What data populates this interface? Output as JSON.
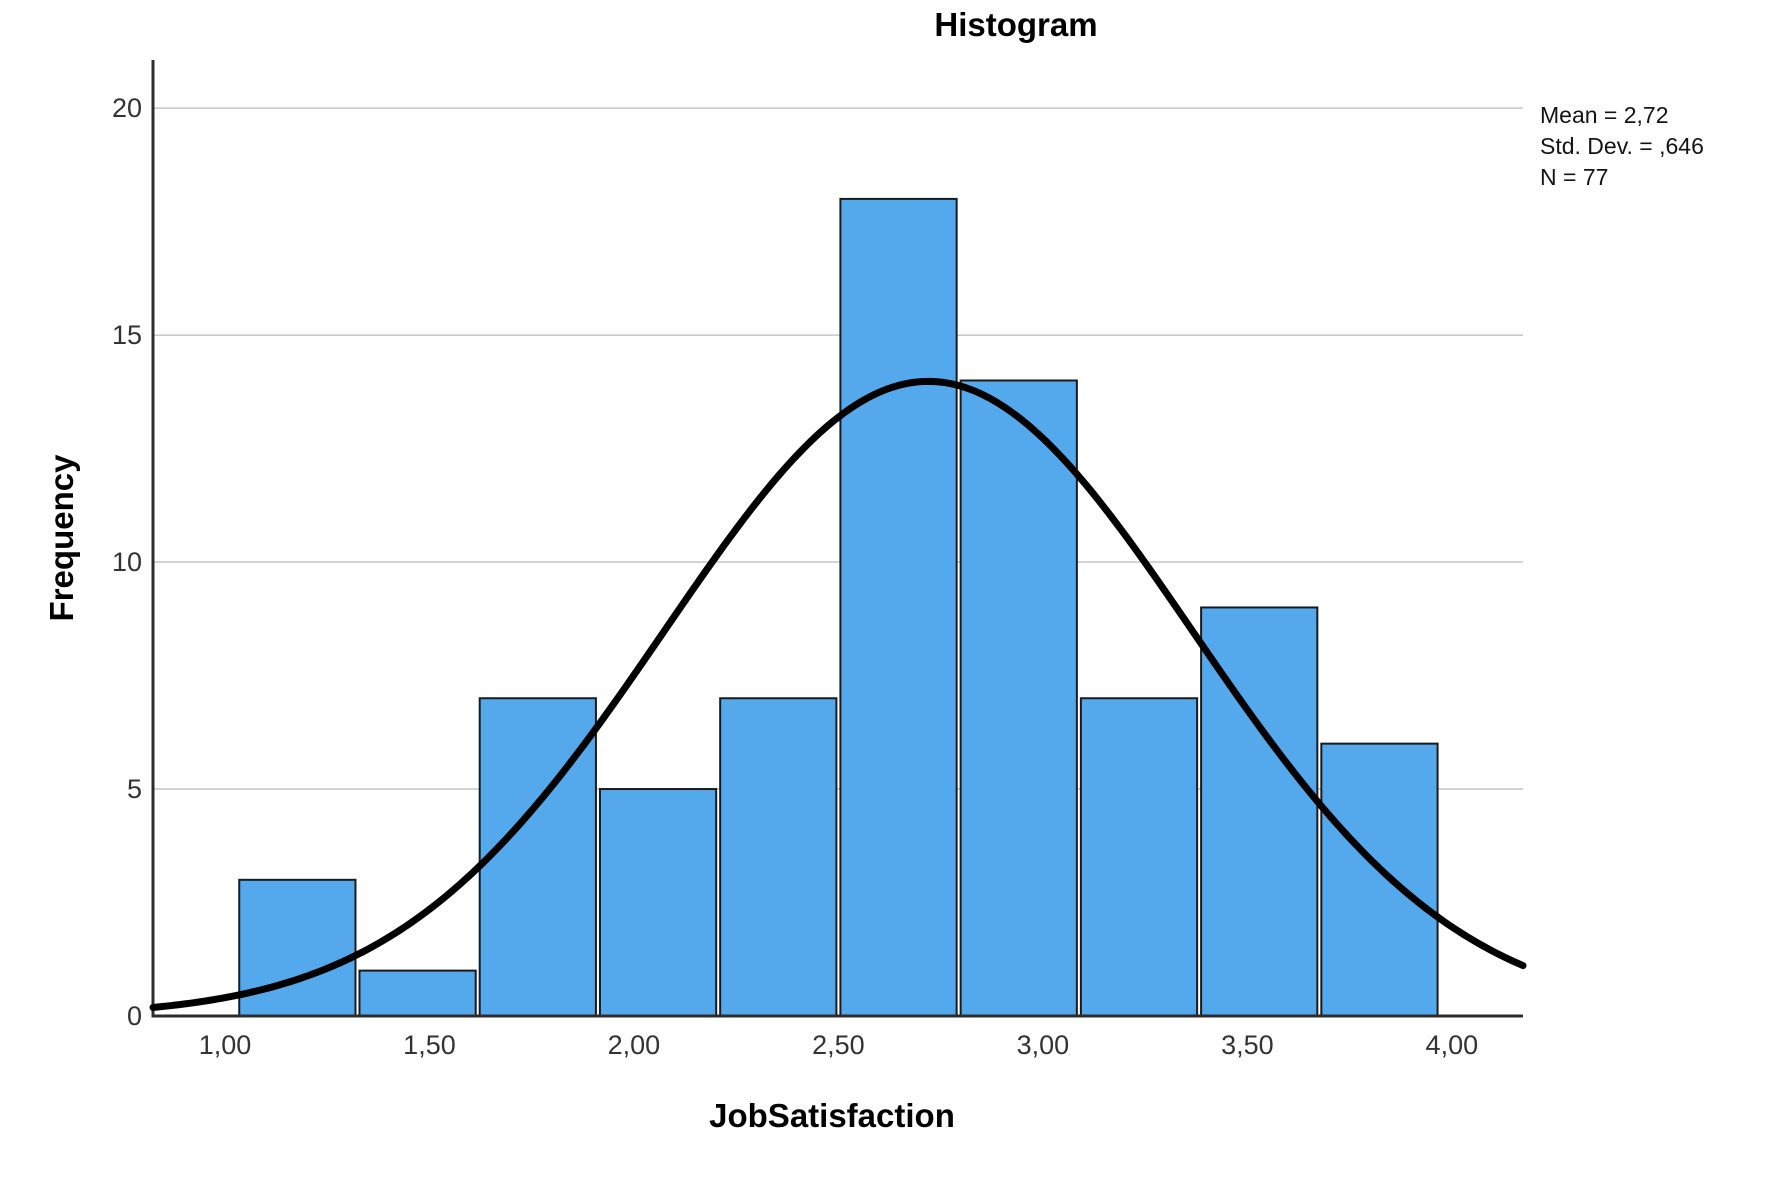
{
  "chart_data": {
    "type": "bar",
    "subtype": "histogram-with-normal-curve",
    "title": "Histogram",
    "xlabel": "JobSatisfaction",
    "ylabel": "Frequency",
    "x_ticks": [
      {
        "value": 1.0,
        "label": "1,00"
      },
      {
        "value": 1.5,
        "label": "1,50"
      },
      {
        "value": 2.0,
        "label": "2,00"
      },
      {
        "value": 2.5,
        "label": "2,50"
      },
      {
        "value": 3.0,
        "label": "3,00"
      },
      {
        "value": 3.5,
        "label": "3,50"
      },
      {
        "value": 4.0,
        "label": "4,00"
      }
    ],
    "y_ticks": [
      {
        "value": 0,
        "label": "0"
      },
      {
        "value": 5,
        "label": "5"
      },
      {
        "value": 10,
        "label": "10"
      },
      {
        "value": 15,
        "label": "15"
      },
      {
        "value": 20,
        "label": "20"
      }
    ],
    "xlim": [
      0.824,
      4.174
    ],
    "ylim": [
      0,
      21.06
    ],
    "grid": "horizontal-only",
    "legend": "none",
    "bins": {
      "start": 1.03,
      "width": 0.294,
      "frequencies": [
        3,
        1,
        7,
        5,
        7,
        18,
        14,
        7,
        9,
        6
      ]
    },
    "normal_curve": {
      "mean": 2.72,
      "std_dev": 0.646,
      "n": 77
    },
    "annotations": [
      "Mean = 2,72",
      "Std. Dev. = ,646",
      "N = 77"
    ],
    "colors": {
      "bar_fill": "#54A8EC",
      "bar_border": "#1b1b1b",
      "curve": "#000000",
      "gridline": "#c6c6c6",
      "axis": "#2d2d2d",
      "tick_text": "#333333"
    }
  }
}
